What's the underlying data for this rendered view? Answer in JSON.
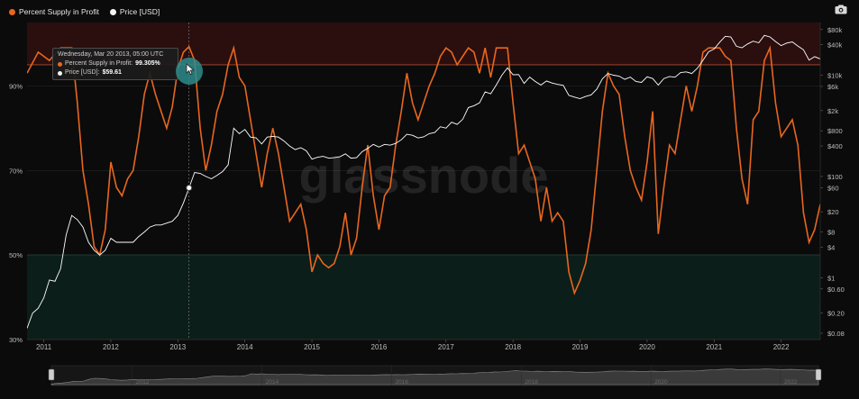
{
  "legend": {
    "series1_label": "Percent Supply in Profit",
    "series2_label": "Price [USD]"
  },
  "tooltip": {
    "date": "Wednesday, Mar 20 2013, 05:00 UTC",
    "series1_label": "Percent Supply in Profit:",
    "series1_value": "99.305%",
    "series2_label": "Price [USD]:",
    "series2_value": "$59.61"
  },
  "watermark": "glassnode",
  "colors": {
    "profit": "#e8671e",
    "price": "#ffffff",
    "upper_band": "#2a0f0e",
    "lower_band": "#0c1e19",
    "band_line_upper": "#b04a30",
    "band_line_lower": "#2f6a55",
    "cursor": "#2e8c8c"
  },
  "chart_data": {
    "type": "line",
    "x_range": [
      "2010-10",
      "2022-08"
    ],
    "x_tick_labels": [
      "2011",
      "2012",
      "2013",
      "2014",
      "2015",
      "2016",
      "2017",
      "2018",
      "2019",
      "2020",
      "2021",
      "2022"
    ],
    "left_axis_ticks": [
      "30%",
      "50%",
      "70%",
      "90%"
    ],
    "left_ylim": [
      30,
      105
    ],
    "right_axis_ticks": [
      "$0.08",
      "$0.20",
      "$0.60",
      "$1",
      "$4",
      "$8",
      "$20",
      "$60",
      "$100",
      "$400",
      "$800",
      "$2k",
      "$6k",
      "$10k",
      "$40k",
      "$80k"
    ],
    "right_axis_log": true,
    "right_ylim": [
      0.06,
      110000
    ],
    "thresholds": {
      "upper": 95,
      "lower": 50
    },
    "navigator_tick_labels": [
      "2012",
      "2014",
      "2016",
      "2018",
      "2020",
      "2022"
    ],
    "series": [
      {
        "name": "Percent Supply in Profit",
        "axis": "left",
        "points": [
          [
            "2010-10",
            93
          ],
          [
            "2010-12",
            98
          ],
          [
            "2011-02",
            96
          ],
          [
            "2011-04",
            99
          ],
          [
            "2011-06",
            99
          ],
          [
            "2011-07",
            86
          ],
          [
            "2011-08",
            70
          ],
          [
            "2011-09",
            62
          ],
          [
            "2011-10",
            52
          ],
          [
            "2011-11",
            50
          ],
          [
            "2011-12",
            56
          ],
          [
            "2012-01",
            72
          ],
          [
            "2012-02",
            66
          ],
          [
            "2012-03",
            64
          ],
          [
            "2012-04",
            68
          ],
          [
            "2012-05",
            70
          ],
          [
            "2012-06",
            78
          ],
          [
            "2012-07",
            88
          ],
          [
            "2012-08",
            93
          ],
          [
            "2012-09",
            88
          ],
          [
            "2012-10",
            84
          ],
          [
            "2012-11",
            80
          ],
          [
            "2012-12",
            85
          ],
          [
            "2013-01",
            94
          ],
          [
            "2013-02",
            98
          ],
          [
            "2013-03",
            99.3
          ],
          [
            "2013-04",
            96
          ],
          [
            "2013-05",
            80
          ],
          [
            "2013-06",
            70
          ],
          [
            "2013-07",
            76
          ],
          [
            "2013-08",
            84
          ],
          [
            "2013-09",
            88
          ],
          [
            "2013-10",
            95
          ],
          [
            "2013-11",
            99
          ],
          [
            "2013-12",
            92
          ],
          [
            "2014-01",
            90
          ],
          [
            "2014-02",
            82
          ],
          [
            "2014-03",
            74
          ],
          [
            "2014-04",
            66
          ],
          [
            "2014-05",
            74
          ],
          [
            "2014-06",
            80
          ],
          [
            "2014-07",
            74
          ],
          [
            "2014-08",
            66
          ],
          [
            "2014-09",
            58
          ],
          [
            "2014-10",
            60
          ],
          [
            "2014-11",
            62
          ],
          [
            "2014-12",
            56
          ],
          [
            "2015-01",
            46
          ],
          [
            "2015-02",
            50
          ],
          [
            "2015-03",
            48
          ],
          [
            "2015-04",
            47
          ],
          [
            "2015-05",
            48
          ],
          [
            "2015-06",
            52
          ],
          [
            "2015-07",
            60
          ],
          [
            "2015-08",
            50
          ],
          [
            "2015-09",
            54
          ],
          [
            "2015-10",
            66
          ],
          [
            "2015-11",
            76
          ],
          [
            "2015-12",
            64
          ],
          [
            "2016-01",
            56
          ],
          [
            "2016-02",
            64
          ],
          [
            "2016-03",
            66
          ],
          [
            "2016-04",
            76
          ],
          [
            "2016-05",
            84
          ],
          [
            "2016-06",
            93
          ],
          [
            "2016-07",
            86
          ],
          [
            "2016-08",
            82
          ],
          [
            "2016-09",
            86
          ],
          [
            "2016-10",
            90
          ],
          [
            "2016-11",
            93
          ],
          [
            "2016-12",
            97
          ],
          [
            "2017-01",
            99
          ],
          [
            "2017-02",
            98
          ],
          [
            "2017-03",
            95
          ],
          [
            "2017-04",
            97
          ],
          [
            "2017-05",
            99
          ],
          [
            "2017-06",
            98
          ],
          [
            "2017-07",
            93
          ],
          [
            "2017-08",
            99
          ],
          [
            "2017-09",
            92
          ],
          [
            "2017-10",
            99
          ],
          [
            "2017-11",
            99
          ],
          [
            "2017-12",
            99
          ],
          [
            "2018-01",
            86
          ],
          [
            "2018-02",
            74
          ],
          [
            "2018-03",
            76
          ],
          [
            "2018-04",
            72
          ],
          [
            "2018-05",
            68
          ],
          [
            "2018-06",
            58
          ],
          [
            "2018-07",
            66
          ],
          [
            "2018-08",
            58
          ],
          [
            "2018-09",
            60
          ],
          [
            "2018-10",
            58
          ],
          [
            "2018-11",
            46
          ],
          [
            "2018-12",
            41
          ],
          [
            "2019-01",
            44
          ],
          [
            "2019-02",
            48
          ],
          [
            "2019-03",
            56
          ],
          [
            "2019-04",
            70
          ],
          [
            "2019-05",
            84
          ],
          [
            "2019-06",
            93
          ],
          [
            "2019-07",
            90
          ],
          [
            "2019-08",
            88
          ],
          [
            "2019-09",
            78
          ],
          [
            "2019-10",
            70
          ],
          [
            "2019-11",
            66
          ],
          [
            "2019-12",
            63
          ],
          [
            "2020-01",
            72
          ],
          [
            "2020-02",
            84
          ],
          [
            "2020-03",
            55
          ],
          [
            "2020-04",
            66
          ],
          [
            "2020-05",
            76
          ],
          [
            "2020-06",
            74
          ],
          [
            "2020-07",
            82
          ],
          [
            "2020-08",
            90
          ],
          [
            "2020-09",
            84
          ],
          [
            "2020-10",
            90
          ],
          [
            "2020-11",
            98
          ],
          [
            "2020-12",
            99
          ],
          [
            "2021-01",
            99
          ],
          [
            "2021-02",
            99
          ],
          [
            "2021-03",
            97
          ],
          [
            "2021-04",
            96
          ],
          [
            "2021-05",
            80
          ],
          [
            "2021-06",
            68
          ],
          [
            "2021-07",
            62
          ],
          [
            "2021-08",
            82
          ],
          [
            "2021-09",
            84
          ],
          [
            "2021-10",
            96
          ],
          [
            "2021-11",
            99
          ],
          [
            "2021-12",
            86
          ],
          [
            "2022-01",
            78
          ],
          [
            "2022-02",
            80
          ],
          [
            "2022-03",
            82
          ],
          [
            "2022-04",
            76
          ],
          [
            "2022-05",
            60
          ],
          [
            "2022-06",
            53
          ],
          [
            "2022-07",
            56
          ],
          [
            "2022-08",
            62
          ]
        ]
      },
      {
        "name": "Price [USD]",
        "axis": "right",
        "points": [
          [
            "2010-10",
            0.1
          ],
          [
            "2010-11",
            0.2
          ],
          [
            "2010-12",
            0.25
          ],
          [
            "2011-01",
            0.4
          ],
          [
            "2011-02",
            0.9
          ],
          [
            "2011-03",
            0.85
          ],
          [
            "2011-04",
            1.5
          ],
          [
            "2011-05",
            7
          ],
          [
            "2011-06",
            17
          ],
          [
            "2011-07",
            14
          ],
          [
            "2011-08",
            10
          ],
          [
            "2011-09",
            5
          ],
          [
            "2011-10",
            3.5
          ],
          [
            "2011-11",
            2.8
          ],
          [
            "2011-12",
            3.5
          ],
          [
            "2012-01",
            6
          ],
          [
            "2012-02",
            5
          ],
          [
            "2012-03",
            5
          ],
          [
            "2012-04",
            5
          ],
          [
            "2012-05",
            5
          ],
          [
            "2012-06",
            6.5
          ],
          [
            "2012-07",
            8
          ],
          [
            "2012-08",
            10
          ],
          [
            "2012-09",
            11
          ],
          [
            "2012-10",
            11
          ],
          [
            "2012-11",
            12
          ],
          [
            "2012-12",
            13
          ],
          [
            "2013-01",
            17
          ],
          [
            "2013-02",
            30
          ],
          [
            "2013-03",
            59.61
          ],
          [
            "2013-04",
            120
          ],
          [
            "2013-05",
            115
          ],
          [
            "2013-06",
            100
          ],
          [
            "2013-07",
            90
          ],
          [
            "2013-08",
            105
          ],
          [
            "2013-09",
            125
          ],
          [
            "2013-10",
            170
          ],
          [
            "2013-11",
            900
          ],
          [
            "2013-12",
            700
          ],
          [
            "2014-01",
            850
          ],
          [
            "2014-02",
            600
          ],
          [
            "2014-03",
            580
          ],
          [
            "2014-04",
            440
          ],
          [
            "2014-05",
            600
          ],
          [
            "2014-06",
            620
          ],
          [
            "2014-07",
            600
          ],
          [
            "2014-08",
            500
          ],
          [
            "2014-09",
            400
          ],
          [
            "2014-10",
            340
          ],
          [
            "2014-11",
            370
          ],
          [
            "2014-12",
            320
          ],
          [
            "2015-01",
            220
          ],
          [
            "2015-02",
            240
          ],
          [
            "2015-03",
            250
          ],
          [
            "2015-04",
            230
          ],
          [
            "2015-05",
            235
          ],
          [
            "2015-06",
            245
          ],
          [
            "2015-07",
            280
          ],
          [
            "2015-08",
            230
          ],
          [
            "2015-09",
            235
          ],
          [
            "2015-10",
            310
          ],
          [
            "2015-11",
            360
          ],
          [
            "2015-12",
            430
          ],
          [
            "2016-01",
            380
          ],
          [
            "2016-02",
            430
          ],
          [
            "2016-03",
            415
          ],
          [
            "2016-04",
            450
          ],
          [
            "2016-05",
            530
          ],
          [
            "2016-06",
            680
          ],
          [
            "2016-07",
            650
          ],
          [
            "2016-08",
            575
          ],
          [
            "2016-09",
            605
          ],
          [
            "2016-10",
            700
          ],
          [
            "2016-11",
            740
          ],
          [
            "2016-12",
            960
          ],
          [
            "2017-01",
            900
          ],
          [
            "2017-02",
            1180
          ],
          [
            "2017-03",
            1070
          ],
          [
            "2017-04",
            1350
          ],
          [
            "2017-05",
            2300
          ],
          [
            "2017-06",
            2500
          ],
          [
            "2017-07",
            2850
          ],
          [
            "2017-08",
            4700
          ],
          [
            "2017-09",
            4300
          ],
          [
            "2017-10",
            6400
          ],
          [
            "2017-11",
            10000
          ],
          [
            "2017-12",
            14000
          ],
          [
            "2018-01",
            10200
          ],
          [
            "2018-02",
            10300
          ],
          [
            "2018-03",
            6900
          ],
          [
            "2018-04",
            9200
          ],
          [
            "2018-05",
            7500
          ],
          [
            "2018-06",
            6400
          ],
          [
            "2018-07",
            7700
          ],
          [
            "2018-08",
            7000
          ],
          [
            "2018-09",
            6600
          ],
          [
            "2018-10",
            6300
          ],
          [
            "2018-11",
            4000
          ],
          [
            "2018-12",
            3700
          ],
          [
            "2019-01",
            3450
          ],
          [
            "2019-02",
            3800
          ],
          [
            "2019-03",
            4100
          ],
          [
            "2019-04",
            5300
          ],
          [
            "2019-05",
            8500
          ],
          [
            "2019-06",
            10800
          ],
          [
            "2019-07",
            10000
          ],
          [
            "2019-08",
            9600
          ],
          [
            "2019-09",
            8300
          ],
          [
            "2019-10",
            9200
          ],
          [
            "2019-11",
            7500
          ],
          [
            "2019-12",
            7200
          ],
          [
            "2020-01",
            9300
          ],
          [
            "2020-02",
            8600
          ],
          [
            "2020-03",
            6400
          ],
          [
            "2020-04",
            8600
          ],
          [
            "2020-05",
            9450
          ],
          [
            "2020-06",
            9150
          ],
          [
            "2020-07",
            11300
          ],
          [
            "2020-08",
            11650
          ],
          [
            "2020-09",
            10800
          ],
          [
            "2020-10",
            13800
          ],
          [
            "2020-11",
            19700
          ],
          [
            "2020-12",
            29000
          ],
          [
            "2021-01",
            33000
          ],
          [
            "2021-02",
            45000
          ],
          [
            "2021-03",
            58800
          ],
          [
            "2021-04",
            57000
          ],
          [
            "2021-05",
            37300
          ],
          [
            "2021-06",
            35000
          ],
          [
            "2021-07",
            41500
          ],
          [
            "2021-08",
            47100
          ],
          [
            "2021-09",
            43800
          ],
          [
            "2021-10",
            61300
          ],
          [
            "2021-11",
            57000
          ],
          [
            "2021-12",
            46300
          ],
          [
            "2022-01",
            38500
          ],
          [
            "2022-02",
            43200
          ],
          [
            "2022-03",
            45500
          ],
          [
            "2022-04",
            37700
          ],
          [
            "2022-05",
            31800
          ],
          [
            "2022-06",
            19900
          ],
          [
            "2022-07",
            23300
          ],
          [
            "2022-08",
            21000
          ]
        ]
      }
    ]
  }
}
